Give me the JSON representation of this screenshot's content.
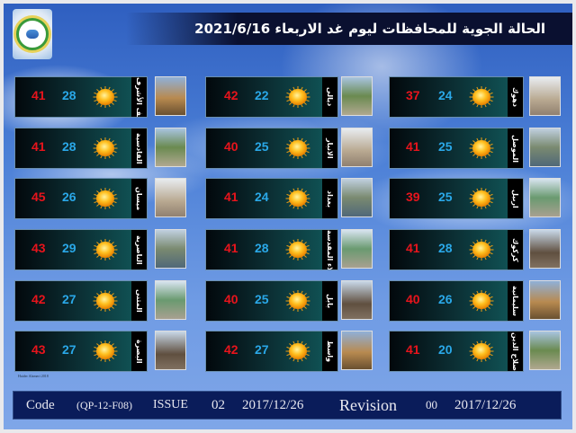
{
  "header": {
    "title": "الحالة الجوية للمحافظات ليوم غد الاربعاء 2021/6/16"
  },
  "logo": {
    "icon": "weather-logo-icon"
  },
  "colors": {
    "max_temp": "#e8141c",
    "min_temp": "#2aa8e8",
    "header_bg": "#0a1030",
    "footer_bg": "#0a1c5a"
  },
  "columns": [
    [
      {
        "name": "النجف الأشرف",
        "max": "41",
        "min": "28",
        "icon": "sunny-icon"
      },
      {
        "name": "القادسية",
        "max": "41",
        "min": "28",
        "icon": "sunny-icon"
      },
      {
        "name": "ميسان",
        "max": "45",
        "min": "26",
        "icon": "sunny-icon"
      },
      {
        "name": "الناصرية",
        "max": "43",
        "min": "29",
        "icon": "sunny-icon"
      },
      {
        "name": "المثنى",
        "max": "42",
        "min": "27",
        "icon": "sunny-icon"
      },
      {
        "name": "البصرة",
        "max": "43",
        "min": "27",
        "icon": "sunny-icon"
      }
    ],
    [
      {
        "name": "ديالى",
        "max": "42",
        "min": "22",
        "icon": "sunny-icon"
      },
      {
        "name": "الانبار",
        "max": "40",
        "min": "25",
        "icon": "sunny-icon"
      },
      {
        "name": "بغداد",
        "max": "41",
        "min": "24",
        "icon": "sunny-icon"
      },
      {
        "name": "كربلاء المقدسة",
        "max": "41",
        "min": "28",
        "icon": "sunny-icon"
      },
      {
        "name": "بابل",
        "max": "40",
        "min": "25",
        "icon": "sunny-icon"
      },
      {
        "name": "واسط",
        "max": "42",
        "min": "27",
        "icon": "sunny-icon"
      }
    ],
    [
      {
        "name": "دهوك",
        "max": "37",
        "min": "24",
        "icon": "sunny-icon"
      },
      {
        "name": "الموصل",
        "max": "41",
        "min": "25",
        "icon": "sunny-icon"
      },
      {
        "name": "اربيل",
        "max": "39",
        "min": "25",
        "icon": "sunny-icon"
      },
      {
        "name": "كركوك",
        "max": "41",
        "min": "28",
        "icon": "sunny-icon"
      },
      {
        "name": "سليمانية",
        "max": "40",
        "min": "26",
        "icon": "sunny-icon"
      },
      {
        "name": "صلاح الدين",
        "max": "41",
        "min": "20",
        "icon": "sunny-icon"
      }
    ]
  ],
  "credit": "Haider Alameri 2018",
  "footer": {
    "code_label": "Code",
    "code": "(QP-12-F08)",
    "issue_label": "ISSUE",
    "issue": "02",
    "issue_date": "2017/12/26",
    "revision_label": "Revision",
    "revision": "00",
    "revision_date": "2017/12/26"
  }
}
